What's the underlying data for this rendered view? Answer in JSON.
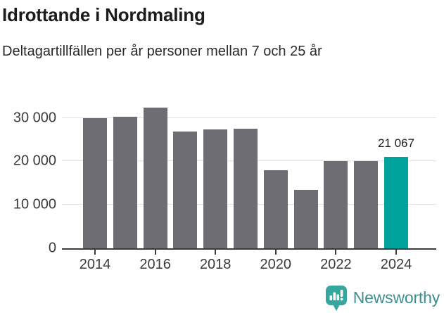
{
  "header": {
    "title": "Idrottande i Nordmaling",
    "subtitle": "Deltagartillfällen per år personer mellan 7 och 25 år"
  },
  "chart_data": {
    "type": "bar",
    "title": "Idrottande i Nordmaling",
    "subtitle": "Deltagartillfällen per år personer mellan 7 och 25 år",
    "categories": [
      "2014",
      "2015",
      "2016",
      "2017",
      "2018",
      "2019",
      "2020",
      "2021",
      "2022",
      "2023",
      "2024"
    ],
    "values": [
      29900,
      30200,
      32400,
      26900,
      27400,
      27600,
      18000,
      13500,
      20100,
      20100,
      21067
    ],
    "highlight_index": 10,
    "annotations": [
      {
        "index": 10,
        "text": "21 067"
      }
    ],
    "yticks": [
      0,
      10000,
      20000,
      30000
    ],
    "ytick_labels": [
      "0",
      "10 000",
      "20 000",
      "30 000"
    ],
    "xtick_every": 2,
    "xtick_labels": [
      "2014",
      "2016",
      "2018",
      "2020",
      "2022",
      "2024"
    ],
    "ylim": [
      0,
      34000
    ],
    "grid": true,
    "legend": "none",
    "bar_color": "#6e6d73",
    "highlight_color": "#00a39b",
    "grid_color": "#e4e4e6",
    "axis_color": "#3c3c3c"
  },
  "footer": {
    "brand": "Newsworthy",
    "logo_icon": "newsworthy-chart-bubble-icon",
    "brand_color": "#3e8e8e",
    "icon_color": "#35a79f"
  }
}
